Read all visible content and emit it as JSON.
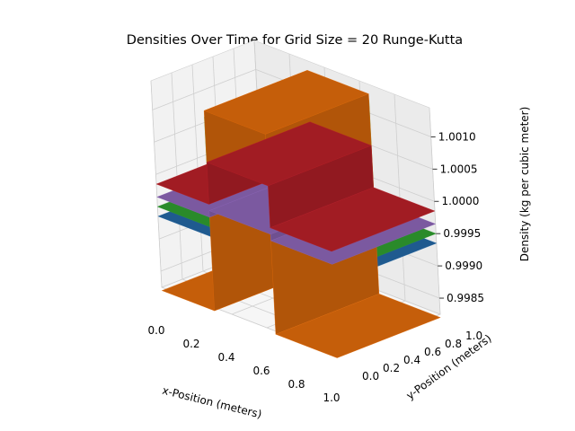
{
  "chart_data": {
    "type": "surface3d",
    "title": "Densities Over Time for Grid Size = 20 Runge-Kutta",
    "xlabel": "x-Position (meters)",
    "ylabel": "y-Position (meters)",
    "zlabel": "Density (kg per cubic meter)",
    "xlim": [
      0,
      1
    ],
    "ylim": [
      0,
      1
    ],
    "zlim": [
      0.99825,
      1.00145
    ],
    "x_ticks": [
      "0.0",
      "0.2",
      "0.4",
      "0.6",
      "0.8",
      "1.0"
    ],
    "y_ticks": [
      "0.0",
      "0.2",
      "0.4",
      "0.6",
      "0.8",
      "1.0"
    ],
    "z_ticks": [
      "0.9985",
      "0.9990",
      "0.9995",
      "1.0000",
      "1.0005",
      "1.0010"
    ],
    "grid": true,
    "series": [
      {
        "color": "#1f5a8f",
        "pulse_low": 0.3,
        "pulse_high": 0.65,
        "z_base": 0.99935,
        "z_peak": 0.99935
      },
      {
        "color": "#2a8a2a",
        "pulse_low": 0.3,
        "pulse_high": 0.65,
        "z_base": 0.9995,
        "z_peak": 1.0012
      },
      {
        "color": "#c55e0a",
        "pulse_low": 0.3,
        "pulse_high": 0.65,
        "z_base": 0.9982,
        "z_peak": 1.0013
      },
      {
        "color": "#7b59a0",
        "pulse_low": 0.3,
        "pulse_high": 0.65,
        "z_base": 0.99965,
        "z_peak": 0.99975
      },
      {
        "color": "#a11c23",
        "pulse_low": 0.3,
        "pulse_high": 0.65,
        "z_base": 0.99985,
        "z_peak": 1.0005
      }
    ]
  }
}
